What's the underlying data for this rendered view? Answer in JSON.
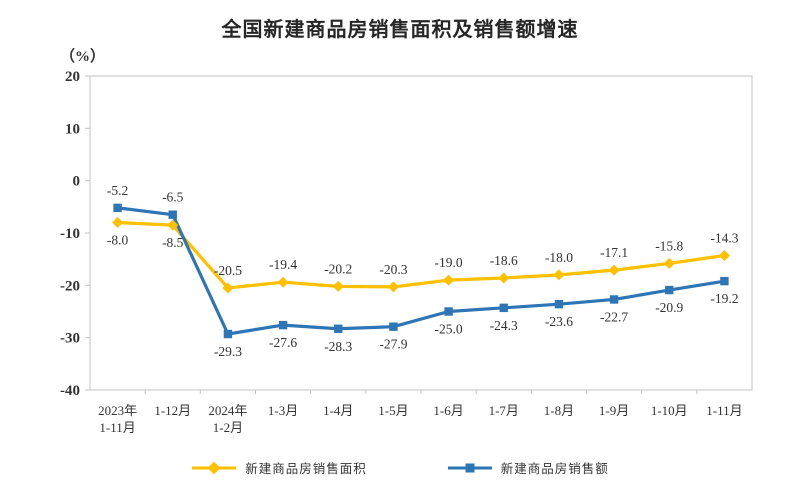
{
  "chart": {
    "title": "全国新建商品房销售面积及销售额增速",
    "unit_label": "（%）"
  },
  "chart_data": {
    "type": "line",
    "title": "全国新建商品房销售面积及销售额增速",
    "ylabel": "（%）",
    "ylim": [
      -40,
      20
    ],
    "y_ticks": [
      20,
      10,
      0,
      -10,
      -20,
      -30,
      -40
    ],
    "grid": false,
    "legend_position": "bottom",
    "axis_color": "#c3c3c3",
    "text_color": "#333333",
    "categories": [
      "2023年\n1-11月",
      "1-12月",
      "2024年\n1-2月",
      "1-3月",
      "1-4月",
      "1-5月",
      "1-6月",
      "1-7月",
      "1-8月",
      "1-9月",
      "1-10月",
      "1-11月"
    ],
    "series": [
      {
        "name": "新建商品房销售面积",
        "color": "#FFC000",
        "marker": "diamond",
        "values": [
          -8.0,
          -8.5,
          -20.5,
          -19.4,
          -20.2,
          -20.3,
          -19.0,
          -18.6,
          -18.0,
          -17.1,
          -15.8,
          -14.3
        ],
        "label_positions": [
          "below",
          "below",
          "above",
          "above",
          "above",
          "above",
          "above",
          "above",
          "above",
          "above",
          "above",
          "above"
        ]
      },
      {
        "name": "新建商品房销售额",
        "color": "#2E75B6",
        "marker": "square",
        "values": [
          -5.2,
          -6.5,
          -29.3,
          -27.6,
          -28.3,
          -27.9,
          -25.0,
          -24.3,
          -23.6,
          -22.7,
          -20.9,
          -19.2
        ],
        "label_positions": [
          "above",
          "above",
          "below",
          "below",
          "below",
          "below",
          "below",
          "below",
          "below",
          "below",
          "below",
          "below"
        ]
      }
    ]
  }
}
